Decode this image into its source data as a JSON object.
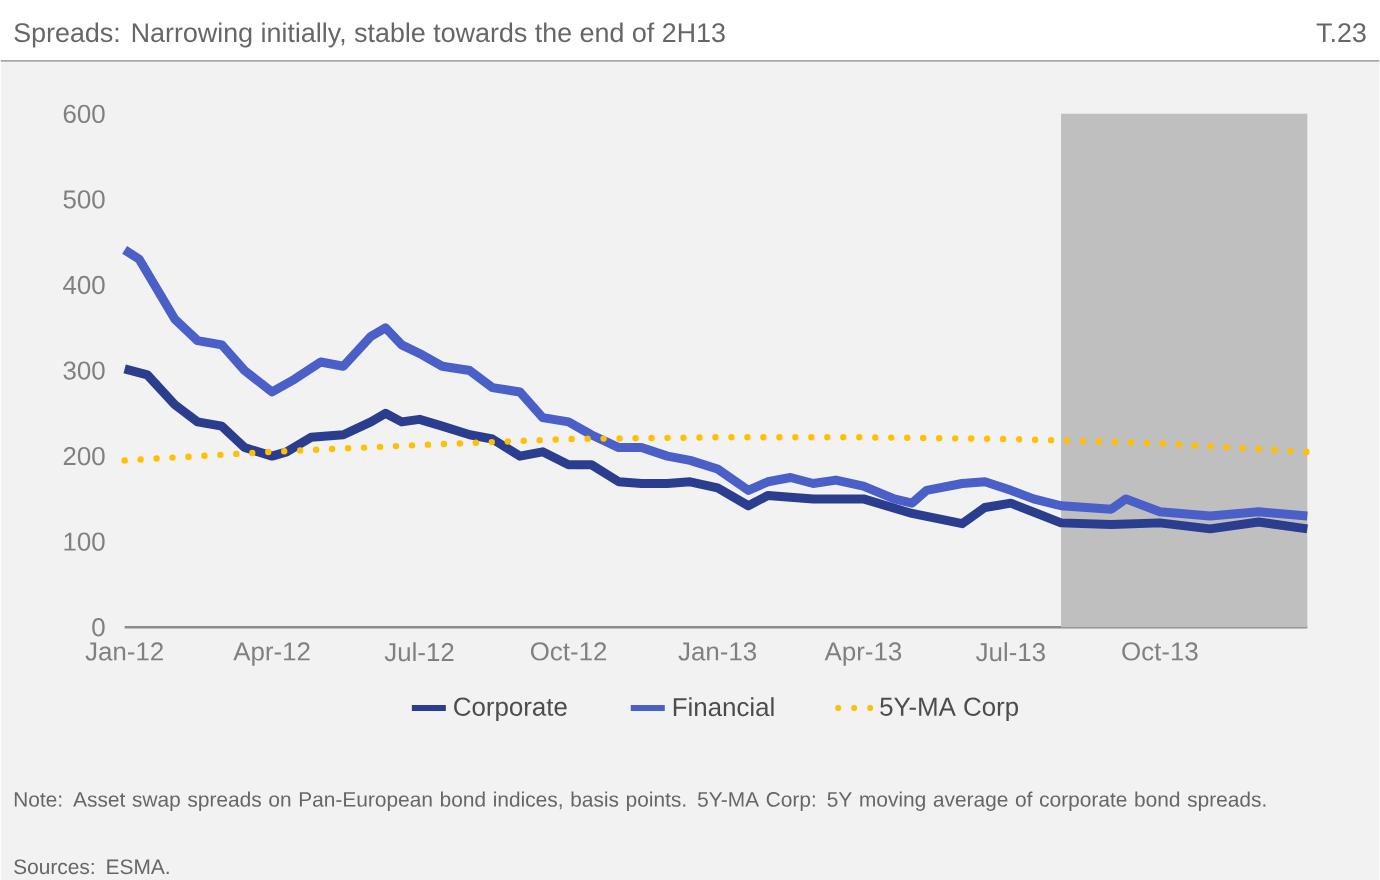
{
  "chart_data": {
    "type": "line",
    "title": "Spreads: Narrowing initially, stable towards the end of 2H13",
    "annotations": [
      "T.23",
      "Note: Asset swap spreads on Pan-European bond indices, basis points. 5Y-MA Corp: 5Y moving average of corporate bond spreads.",
      "Sources: ESMA."
    ],
    "xlim": [
      "2012-01-01",
      "2013-12-31"
    ],
    "xticks": [
      {
        "value": "2012-01-01",
        "label": "Jan-12"
      },
      {
        "value": "2012-04-01",
        "label": "Apr-12"
      },
      {
        "value": "2012-07-01",
        "label": "Jul-12"
      },
      {
        "value": "2012-10-01",
        "label": "Oct-12"
      },
      {
        "value": "2013-01-01",
        "label": "Jan-13"
      },
      {
        "value": "2013-04-01",
        "label": "Apr-13"
      },
      {
        "value": "2013-07-01",
        "label": "Jul-13"
      },
      {
        "value": "2013-10-01",
        "label": "Oct-13"
      }
    ],
    "ylim": [
      0,
      600
    ],
    "yticks": [
      0,
      100,
      200,
      300,
      400,
      500,
      600
    ],
    "legend": "bottom",
    "bands": [
      {
        "axis": "x",
        "from": "2013-08-01",
        "to": "2013-12-31",
        "color": "#bfbfbf"
      }
    ],
    "series": [
      {
        "name": "Corporate",
        "type": "line",
        "line_style": "solid",
        "color": "#2b3d8f",
        "x": [
          "2012-01-01",
          "2012-01-15",
          "2012-02-01",
          "2012-02-15",
          "2012-03-01",
          "2012-03-15",
          "2012-04-01",
          "2012-04-10",
          "2012-04-25",
          "2012-05-15",
          "2012-06-01",
          "2012-06-10",
          "2012-06-20",
          "2012-07-01",
          "2012-07-15",
          "2012-08-01",
          "2012-08-15",
          "2012-09-01",
          "2012-09-15",
          "2012-10-01",
          "2012-10-15",
          "2012-11-01",
          "2012-11-15",
          "2012-12-01",
          "2012-12-15",
          "2013-01-01",
          "2013-01-20",
          "2013-02-01",
          "2013-03-01",
          "2013-04-01",
          "2013-05-01",
          "2013-06-01",
          "2013-06-15",
          "2013-07-01",
          "2013-08-01",
          "2013-09-01",
          "2013-10-01",
          "2013-11-01",
          "2013-12-01",
          "2013-12-31"
        ],
        "values": [
          302,
          295,
          260,
          240,
          235,
          210,
          200,
          205,
          222,
          225,
          240,
          250,
          240,
          243,
          235,
          225,
          220,
          200,
          205,
          190,
          190,
          170,
          168,
          168,
          170,
          163,
          142,
          154,
          150,
          150,
          133,
          121,
          140,
          145,
          122,
          120,
          122,
          115,
          123,
          115
        ]
      },
      {
        "name": "Financial",
        "type": "line",
        "line_style": "solid",
        "color": "#4a5fc8",
        "x": [
          "2012-01-01",
          "2012-01-10",
          "2012-02-01",
          "2012-02-15",
          "2012-03-01",
          "2012-03-15",
          "2012-04-01",
          "2012-04-15",
          "2012-05-01",
          "2012-05-15",
          "2012-06-01",
          "2012-06-10",
          "2012-06-20",
          "2012-07-01",
          "2012-07-15",
          "2012-08-01",
          "2012-08-15",
          "2012-09-01",
          "2012-09-15",
          "2012-10-01",
          "2012-10-15",
          "2012-11-01",
          "2012-11-15",
          "2012-12-01",
          "2012-12-15",
          "2013-01-01",
          "2013-01-20",
          "2013-02-01",
          "2013-02-15",
          "2013-03-01",
          "2013-03-15",
          "2013-04-01",
          "2013-04-20",
          "2013-05-01",
          "2013-05-10",
          "2013-06-01",
          "2013-06-15",
          "2013-07-01",
          "2013-07-15",
          "2013-08-01",
          "2013-09-01",
          "2013-09-10",
          "2013-10-01",
          "2013-11-01",
          "2013-12-01",
          "2013-12-31"
        ],
        "values": [
          441,
          430,
          360,
          335,
          330,
          300,
          275,
          290,
          310,
          305,
          340,
          350,
          330,
          320,
          305,
          300,
          280,
          275,
          245,
          240,
          225,
          210,
          210,
          200,
          195,
          185,
          160,
          170,
          175,
          168,
          172,
          165,
          150,
          145,
          160,
          168,
          170,
          160,
          150,
          142,
          138,
          150,
          135,
          130,
          135,
          130
        ]
      },
      {
        "name": "5Y-MA Corp",
        "type": "line",
        "line_style": "dotted",
        "color": "#ffc000",
        "x": [
          "2012-01-01",
          "2012-04-01",
          "2012-07-01",
          "2012-10-01",
          "2013-01-01",
          "2013-04-01",
          "2013-07-01",
          "2013-10-01",
          "2013-12-31"
        ],
        "values": [
          195,
          205,
          213,
          220,
          222,
          222,
          220,
          215,
          205
        ]
      }
    ]
  }
}
